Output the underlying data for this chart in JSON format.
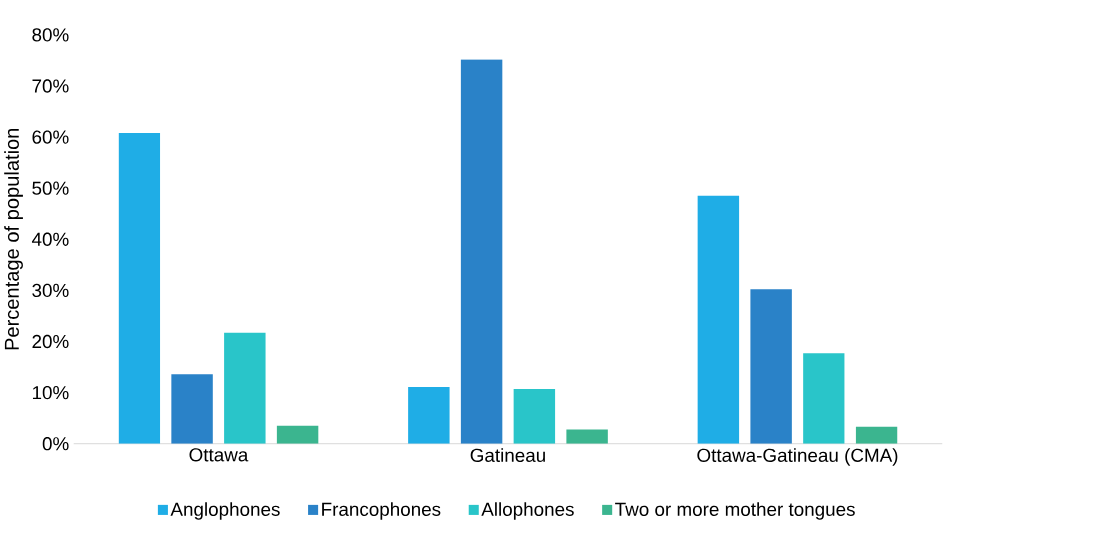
{
  "chart_data": {
    "type": "bar",
    "ylabel": "Percentage of population",
    "categories": [
      "Ottawa",
      "Gatineau",
      "Ottawa-Gatineau (CMA)"
    ],
    "series": [
      {
        "name": "Anglophones",
        "color": "#1fade6",
        "values": [
          60.8,
          11.1,
          48.5
        ]
      },
      {
        "name": "Francophones",
        "color": "#2a82c8",
        "values": [
          13.6,
          75.2,
          30.2
        ]
      },
      {
        "name": "Allophones",
        "color": "#29c5c9",
        "values": [
          21.7,
          10.7,
          17.7
        ]
      },
      {
        "name": "Two or more mother tongues",
        "color": "#3bb58f",
        "values": [
          3.5,
          2.8,
          3.3
        ]
      }
    ],
    "ylim": [
      0,
      80
    ],
    "yticks": [
      {
        "value": 0,
        "label": "0%"
      },
      {
        "value": 10,
        "label": "10%"
      },
      {
        "value": 20,
        "label": "20%"
      },
      {
        "value": 30,
        "label": "30%"
      },
      {
        "value": 40,
        "label": "40%"
      },
      {
        "value": 50,
        "label": "50%"
      },
      {
        "value": 60,
        "label": "60%"
      },
      {
        "value": 70,
        "label": "70%"
      },
      {
        "value": 80,
        "label": "80%"
      }
    ],
    "legend": "bottom"
  }
}
